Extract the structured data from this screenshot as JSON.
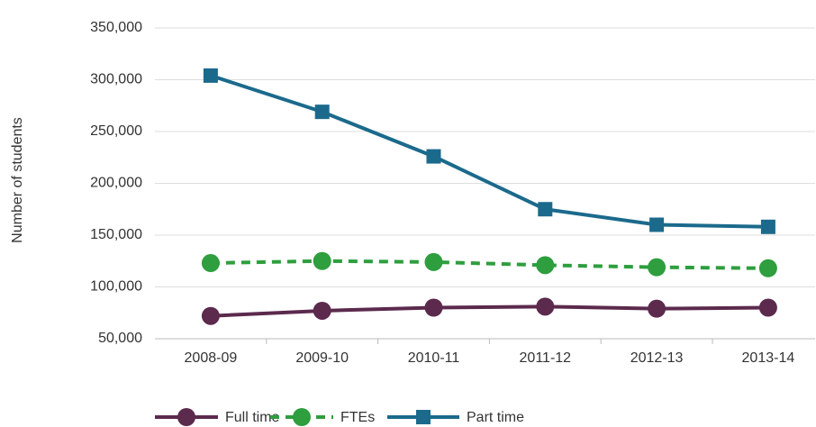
{
  "chart_data": {
    "type": "line",
    "y_axis_label": "Number of students",
    "categories": [
      "2008-09",
      "2009-10",
      "2010-11",
      "2011-12",
      "2012-13",
      "2013-14"
    ],
    "series": [
      {
        "name": "Full time",
        "color": "#5b2a4d",
        "dash": false,
        "marker": "circle",
        "values": [
          72000,
          77000,
          80000,
          81000,
          79000,
          80000
        ]
      },
      {
        "name": "FTEs",
        "color": "#2e9e3e",
        "dash": true,
        "marker": "circle",
        "values": [
          123000,
          125000,
          124000,
          121000,
          119000,
          118000
        ]
      },
      {
        "name": "Part time",
        "color": "#1b6a8c",
        "dash": false,
        "marker": "square",
        "values": [
          304000,
          269000,
          226000,
          175000,
          160000,
          158000
        ]
      }
    ],
    "ylim": [
      50000,
      350000
    ],
    "yticks": [
      {
        "value": 50000,
        "label": "50,000"
      },
      {
        "value": 100000,
        "label": "100,000"
      },
      {
        "value": 150000,
        "label": "150,000"
      },
      {
        "value": 200000,
        "label": "200,000"
      },
      {
        "value": 250000,
        "label": "250,000"
      },
      {
        "value": 300000,
        "label": "300,000"
      },
      {
        "value": 350000,
        "label": "350,000"
      }
    ],
    "grid": true,
    "legend": "bottom"
  }
}
